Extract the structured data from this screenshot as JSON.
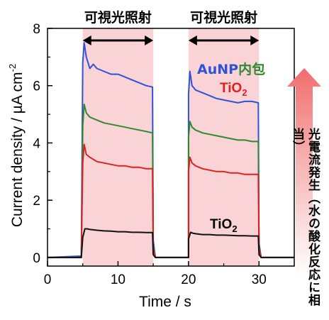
{
  "chart_data": {
    "type": "line",
    "xlabel": "Time / s",
    "ylabel": "Current density / µA cm",
    "ylabel_sup": "-2",
    "xlim": [
      0,
      35
    ],
    "ylim": [
      -0.3,
      8
    ],
    "xticks": [
      0,
      10,
      20,
      30
    ],
    "yticks": [
      0,
      2,
      4,
      6,
      8
    ],
    "grid": false,
    "light_on_label": "可視光照射",
    "light_on_periods": [
      [
        5,
        15
      ],
      [
        20,
        30
      ]
    ],
    "shading_color": "#f9d3d6",
    "series": [
      {
        "name": "AuNP内包",
        "color": "#2f52d6",
        "x": [
          0,
          4.8,
          5.0,
          5.2,
          5.5,
          6.0,
          6.5,
          7,
          8,
          9,
          10,
          11,
          12,
          13,
          14,
          14.9,
          15.0,
          15.3,
          20,
          20.0,
          20.2,
          20.5,
          21,
          22,
          23,
          24,
          25,
          26,
          27,
          28,
          29,
          29.9,
          30.0,
          30.3,
          35
        ],
        "y": [
          0,
          0.05,
          6.8,
          7.5,
          7.0,
          6.6,
          6.75,
          6.6,
          6.5,
          6.4,
          6.4,
          6.3,
          6.2,
          6.1,
          6.0,
          5.95,
          0.6,
          0,
          0,
          5.7,
          6.5,
          6.0,
          5.85,
          5.75,
          5.65,
          5.55,
          5.5,
          5.45,
          5.4,
          5.45,
          5.45,
          5.4,
          0.5,
          0,
          0
        ]
      },
      {
        "name": "AuNP内包 (2)",
        "color": "#2f8a2f",
        "x": [
          0,
          4.8,
          5.0,
          5.2,
          5.5,
          6.0,
          7,
          8,
          9,
          10,
          11,
          12,
          13,
          14,
          14.9,
          15.0,
          15.3,
          20,
          20.0,
          20.2,
          20.5,
          21,
          22,
          23,
          24,
          25,
          26,
          27,
          28,
          29,
          29.9,
          30.0,
          30.3,
          35
        ],
        "y": [
          0,
          0,
          4.6,
          5.35,
          5.05,
          4.9,
          4.8,
          4.7,
          4.65,
          4.6,
          4.55,
          4.5,
          4.45,
          4.4,
          4.35,
          0.4,
          0,
          0,
          4.2,
          4.75,
          4.55,
          4.45,
          4.35,
          4.3,
          4.25,
          4.2,
          4.15,
          4.1,
          4.1,
          4.05,
          4.05,
          0.4,
          0,
          0
        ]
      },
      {
        "name": "TiO2",
        "color": "#e02020",
        "x": [
          0,
          4.8,
          5.0,
          5.2,
          5.5,
          6.0,
          7,
          8,
          9,
          10,
          11,
          12,
          13,
          14,
          14.9,
          15.0,
          15.3,
          20,
          20.0,
          20.2,
          20.5,
          21,
          22,
          23,
          24,
          25,
          26,
          27,
          28,
          29,
          29.9,
          30.0,
          30.3,
          35
        ],
        "y": [
          0,
          0,
          3.3,
          3.95,
          3.6,
          3.5,
          3.35,
          3.3,
          3.25,
          3.2,
          3.2,
          3.15,
          3.15,
          3.1,
          3.1,
          0.3,
          0,
          0,
          3.0,
          3.5,
          3.3,
          3.2,
          3.1,
          3.05,
          3.0,
          3.0,
          2.95,
          2.95,
          2.9,
          2.9,
          2.9,
          0.3,
          0,
          0
        ]
      },
      {
        "name": "TiO2 (2)",
        "color": "#111111",
        "x": [
          0,
          4.8,
          5.0,
          5.3,
          5.6,
          6.0,
          7,
          8,
          9,
          10,
          11,
          12,
          13,
          14,
          14.9,
          15.0,
          15.3,
          20,
          20.0,
          20.3,
          20.6,
          21,
          22,
          23,
          24,
          25,
          26,
          27,
          28,
          29,
          29.9,
          30.0,
          30.3,
          35
        ],
        "y": [
          0,
          0,
          0.7,
          1.0,
          1.0,
          0.98,
          0.95,
          0.93,
          0.92,
          0.9,
          0.9,
          0.88,
          0.88,
          0.87,
          0.87,
          0.1,
          0,
          0,
          0.65,
          0.88,
          0.85,
          0.83,
          0.8,
          0.8,
          0.78,
          0.78,
          0.77,
          0.76,
          0.76,
          0.75,
          0.75,
          0.1,
          0,
          0
        ]
      }
    ],
    "annotations": [
      {
        "text": "AuNP",
        "color": "#2f52d6"
      },
      {
        "text": "内包",
        "color": "#2f8a2f"
      },
      {
        "text": "TiO",
        "sub": "2",
        "color": "#e02020"
      },
      {
        "text": "TiO",
        "sub": "2",
        "color": "#000000"
      }
    ],
    "side_arrow_text": "光電流発生（水の酸化反応に相当）",
    "side_arrow_color": "#f26d6d"
  }
}
